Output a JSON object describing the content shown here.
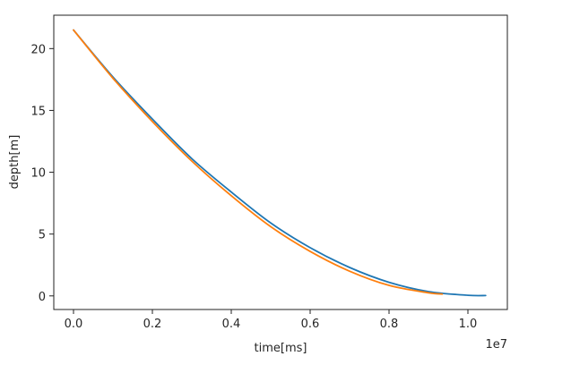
{
  "chart_data": {
    "type": "line",
    "title": "",
    "xlabel": "time[ms]",
    "ylabel": "depth[m]",
    "x_offset_label": "1e7",
    "xlim": [
      -0.05,
      1.1
    ],
    "ylim": [
      -1.1,
      22.7
    ],
    "x_ticks": [
      0.0,
      0.2,
      0.4,
      0.6,
      0.8,
      1.0
    ],
    "x_tick_labels": [
      "0.0",
      "0.2",
      "0.4",
      "0.6",
      "0.8",
      "1.0"
    ],
    "y_ticks": [
      0,
      5,
      10,
      15,
      20
    ],
    "y_tick_labels": [
      "0",
      "5",
      "10",
      "15",
      "20"
    ],
    "grid": false,
    "legend": "none",
    "series": [
      {
        "color": "#1f77b4",
        "x": [
          0.0,
          0.1,
          0.2,
          0.3,
          0.4,
          0.5,
          0.6,
          0.7,
          0.8,
          0.9,
          1.0,
          1.045
        ],
        "y": [
          21.5,
          17.7,
          14.3,
          11.1,
          8.4,
          5.9,
          3.9,
          2.3,
          1.1,
          0.35,
          0.05,
          0.03
        ]
      },
      {
        "color": "#ff7f0e",
        "x": [
          0.0,
          0.1,
          0.2,
          0.3,
          0.4,
          0.5,
          0.6,
          0.7,
          0.8,
          0.9,
          0.935
        ],
        "y": [
          21.5,
          17.6,
          14.1,
          10.9,
          8.1,
          5.6,
          3.6,
          2.0,
          0.85,
          0.25,
          0.15
        ]
      }
    ]
  }
}
